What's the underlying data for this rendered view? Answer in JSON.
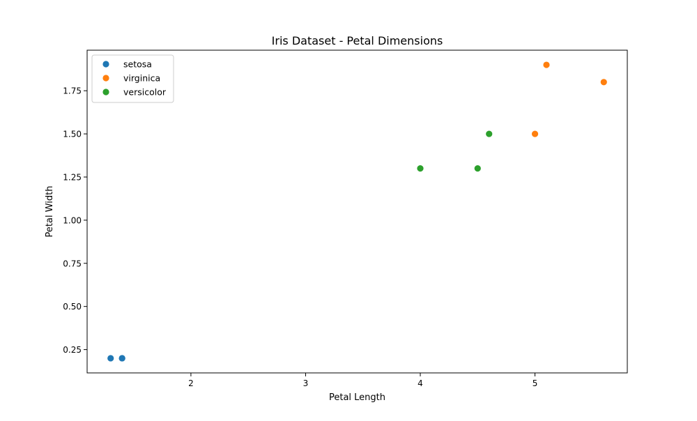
{
  "chart_data": {
    "type": "scatter",
    "title": "Iris Dataset - Petal Dimensions",
    "xlabel": "Petal Length",
    "ylabel": "Petal Width",
    "xlim": [
      1.095,
      5.805
    ],
    "ylim": [
      0.115,
      1.985
    ],
    "xticks": [
      2,
      3,
      4,
      5
    ],
    "yticks": [
      0.25,
      0.5,
      0.75,
      1.0,
      1.25,
      1.5,
      1.75
    ],
    "ytick_labels": [
      "0.25",
      "0.50",
      "0.75",
      "1.00",
      "1.25",
      "1.50",
      "1.75"
    ],
    "grid": false,
    "legend_position": "upper-left",
    "series": [
      {
        "name": "setosa",
        "color": "#1f77b4",
        "points": [
          [
            1.4,
            0.2
          ],
          [
            1.4,
            0.2
          ],
          [
            1.3,
            0.2
          ]
        ]
      },
      {
        "name": "virginica",
        "color": "#ff7f0e",
        "points": [
          [
            5.1,
            1.9
          ],
          [
            5.6,
            1.8
          ],
          [
            5.0,
            1.5
          ]
        ]
      },
      {
        "name": "versicolor",
        "color": "#2ca02c",
        "points": [
          [
            4.0,
            1.3
          ],
          [
            4.6,
            1.5
          ],
          [
            4.5,
            1.3
          ]
        ]
      }
    ]
  }
}
